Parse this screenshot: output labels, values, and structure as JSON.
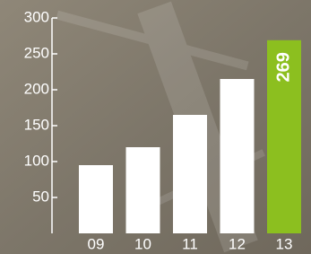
{
  "chart_data": {
    "type": "bar",
    "categories": [
      "09",
      "10",
      "11",
      "12",
      "13"
    ],
    "values": [
      95,
      120,
      165,
      215,
      269
    ],
    "colors": [
      "#ffffff",
      "#ffffff",
      "#ffffff",
      "#ffffff",
      "#8cbf1f"
    ],
    "ylim": [
      0,
      300
    ],
    "yticks": [
      50,
      100,
      150,
      200,
      250,
      300
    ]
  }
}
